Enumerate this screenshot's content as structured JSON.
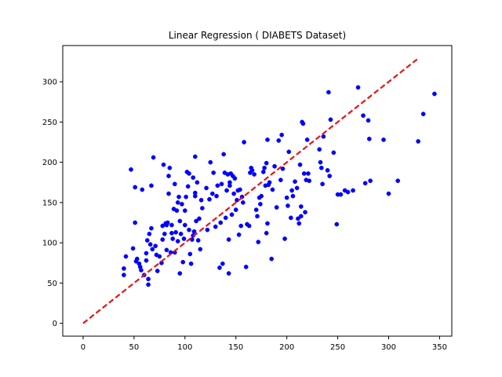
{
  "chart_data": {
    "type": "scatter",
    "title": "Linear Regression ( DIABETS Dataset)",
    "xlabel": "",
    "ylabel": "",
    "xlim": [
      -20,
      362
    ],
    "ylim": [
      -16,
      345
    ],
    "x_ticks": [
      0,
      50,
      100,
      150,
      200,
      250,
      300,
      350
    ],
    "y_ticks": [
      0,
      50,
      100,
      150,
      200,
      250,
      300
    ],
    "grid": false,
    "legend": "none",
    "colors": {
      "points": "#0000ff",
      "line": "#ee1111",
      "axes": "#000000"
    },
    "line": {
      "style": "dashed",
      "x": [
        0,
        330
      ],
      "y": [
        0,
        330
      ]
    },
    "points": [
      [
        40,
        60
      ],
      [
        40,
        68
      ],
      [
        42,
        83
      ],
      [
        47,
        191
      ],
      [
        49,
        93
      ],
      [
        51,
        125
      ],
      [
        51,
        169
      ],
      [
        52,
        77
      ],
      [
        53,
        80
      ],
      [
        55,
        74
      ],
      [
        56,
        70
      ],
      [
        57,
        66
      ],
      [
        58,
        166
      ],
      [
        60,
        60
      ],
      [
        62,
        87
      ],
      [
        62,
        78
      ],
      [
        63,
        103
      ],
      [
        64,
        55
      ],
      [
        64,
        48
      ],
      [
        65,
        111
      ],
      [
        66,
        98
      ],
      [
        67,
        118
      ],
      [
        67,
        171
      ],
      [
        68,
        92
      ],
      [
        69,
        206
      ],
      [
        71,
        96
      ],
      [
        72,
        85
      ],
      [
        73,
        65
      ],
      [
        75,
        83
      ],
      [
        77,
        75
      ],
      [
        78,
        104
      ],
      [
        78,
        121
      ],
      [
        79,
        197
      ],
      [
        80,
        111
      ],
      [
        81,
        124
      ],
      [
        82,
        91
      ],
      [
        82,
        122
      ],
      [
        83,
        125
      ],
      [
        84,
        183
      ],
      [
        84,
        161
      ],
      [
        85,
        193
      ],
      [
        86,
        88
      ],
      [
        87,
        112
      ],
      [
        87,
        122
      ],
      [
        88,
        105
      ],
      [
        89,
        142
      ],
      [
        90,
        88
      ],
      [
        90,
        173
      ],
      [
        91,
        113
      ],
      [
        92,
        140
      ],
      [
        93,
        102
      ],
      [
        93,
        150
      ],
      [
        94,
        157
      ],
      [
        95,
        62
      ],
      [
        95,
        127
      ],
      [
        96,
        111
      ],
      [
        97,
        148
      ],
      [
        98,
        76
      ],
      [
        99,
        105
      ],
      [
        100,
        122
      ],
      [
        100,
        140
      ],
      [
        101,
        157
      ],
      [
        102,
        188
      ],
      [
        103,
        170
      ],
      [
        104,
        116
      ],
      [
        104,
        186
      ],
      [
        105,
        86
      ],
      [
        106,
        74
      ],
      [
        107,
        104
      ],
      [
        108,
        181
      ],
      [
        108,
        109
      ],
      [
        109,
        114
      ],
      [
        110,
        207
      ],
      [
        110,
        162
      ],
      [
        110,
        158
      ],
      [
        111,
        127
      ],
      [
        112,
        175
      ],
      [
        113,
        103
      ],
      [
        114,
        130
      ],
      [
        115,
        92
      ],
      [
        116,
        153
      ],
      [
        117,
        143
      ],
      [
        121,
        168
      ],
      [
        122,
        116
      ],
      [
        124,
        154
      ],
      [
        125,
        200
      ],
      [
        127,
        161
      ],
      [
        128,
        187
      ],
      [
        130,
        120
      ],
      [
        131,
        158
      ],
      [
        132,
        171
      ],
      [
        134,
        69
      ],
      [
        135,
        125
      ],
      [
        136,
        173
      ],
      [
        137,
        74
      ],
      [
        138,
        210
      ],
      [
        139,
        187
      ],
      [
        140,
        131
      ],
      [
        141,
        165
      ],
      [
        142,
        185
      ],
      [
        143,
        104
      ],
      [
        143,
        62
      ],
      [
        144,
        171
      ],
      [
        144,
        175
      ],
      [
        145,
        186
      ],
      [
        146,
        135
      ],
      [
        147,
        183
      ],
      [
        148,
        161
      ],
      [
        149,
        180
      ],
      [
        150,
        141
      ],
      [
        151,
        153
      ],
      [
        152,
        165
      ],
      [
        153,
        110
      ],
      [
        154,
        166
      ],
      [
        155,
        121
      ],
      [
        156,
        157
      ],
      [
        157,
        150
      ],
      [
        158,
        225
      ],
      [
        160,
        70
      ],
      [
        161,
        123
      ],
      [
        163,
        121
      ],
      [
        164,
        187
      ],
      [
        165,
        193
      ],
      [
        166,
        190
      ],
      [
        168,
        185
      ],
      [
        170,
        141
      ],
      [
        171,
        133
      ],
      [
        172,
        101
      ],
      [
        173,
        156
      ],
      [
        174,
        148
      ],
      [
        175,
        158
      ],
      [
        177,
        188
      ],
      [
        178,
        193
      ],
      [
        179,
        171
      ],
      [
        180,
        199
      ],
      [
        180,
        112
      ],
      [
        181,
        228
      ],
      [
        181,
        124
      ],
      [
        182,
        172
      ],
      [
        183,
        175
      ],
      [
        185,
        80
      ],
      [
        186,
        166
      ],
      [
        188,
        195
      ],
      [
        190,
        144
      ],
      [
        192,
        227
      ],
      [
        194,
        178
      ],
      [
        195,
        234
      ],
      [
        196,
        192
      ],
      [
        198,
        105
      ],
      [
        200,
        156
      ],
      [
        201,
        146
      ],
      [
        202,
        213
      ],
      [
        204,
        131
      ],
      [
        205,
        165
      ],
      [
        206,
        158
      ],
      [
        208,
        176
      ],
      [
        210,
        168
      ],
      [
        211,
        130
      ],
      [
        212,
        124
      ],
      [
        213,
        197
      ],
      [
        214,
        145
      ],
      [
        214,
        133
      ],
      [
        215,
        250
      ],
      [
        216,
        248
      ],
      [
        217,
        186
      ],
      [
        218,
        138
      ],
      [
        219,
        178
      ],
      [
        220,
        228
      ],
      [
        221,
        186
      ],
      [
        222,
        177
      ],
      [
        232,
        216
      ],
      [
        233,
        200
      ],
      [
        234,
        193
      ],
      [
        235,
        173
      ],
      [
        236,
        232
      ],
      [
        240,
        190
      ],
      [
        241,
        287
      ],
      [
        242,
        183
      ],
      [
        243,
        253
      ],
      [
        246,
        212
      ],
      [
        249,
        123
      ],
      [
        250,
        160
      ],
      [
        253,
        160
      ],
      [
        257,
        165
      ],
      [
        260,
        163
      ],
      [
        265,
        165
      ],
      [
        270,
        293
      ],
      [
        275,
        258
      ],
      [
        277,
        174
      ],
      [
        280,
        252
      ],
      [
        281,
        229
      ],
      [
        282,
        177
      ],
      [
        295,
        228
      ],
      [
        300,
        161
      ],
      [
        309,
        177
      ],
      [
        329,
        226
      ],
      [
        334,
        260
      ],
      [
        345,
        285
      ]
    ]
  }
}
